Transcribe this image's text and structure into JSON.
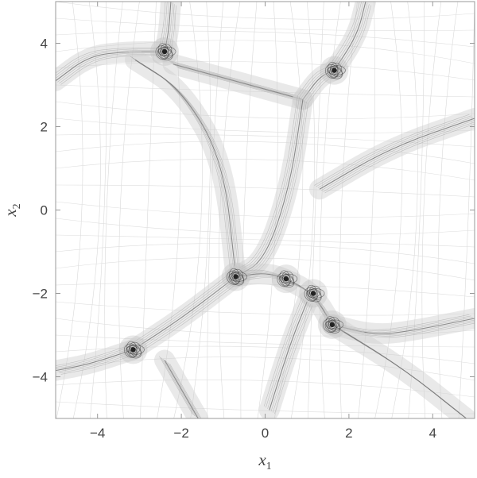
{
  "chart_data": {
    "type": "scatter",
    "title": "",
    "xlabel": "x",
    "xlabel_sub": "1",
    "ylabel": "x",
    "ylabel_sub": "2",
    "xlim": [
      -5,
      5
    ],
    "ylim": [
      -5,
      5
    ],
    "xticks": [
      {
        "value": -4,
        "label": "−4"
      },
      {
        "value": -2,
        "label": "−2"
      },
      {
        "value": 0,
        "label": "0"
      },
      {
        "value": 2,
        "label": "2"
      },
      {
        "value": 4,
        "label": "4"
      }
    ],
    "yticks": [
      {
        "value": 4,
        "label": "4"
      },
      {
        "value": 2,
        "label": "2"
      },
      {
        "value": 0,
        "label": "0"
      },
      {
        "value": -2,
        "label": "−2"
      },
      {
        "value": -4,
        "label": "−4"
      }
    ],
    "grid": false,
    "clusters": [
      {
        "x": -2.4,
        "y": 3.8
      },
      {
        "x": 1.65,
        "y": 3.35
      },
      {
        "x": -0.7,
        "y": -1.6
      },
      {
        "x": 0.5,
        "y": -1.65
      },
      {
        "x": 1.15,
        "y": -2.0
      },
      {
        "x": 1.6,
        "y": -2.75
      },
      {
        "x": -3.15,
        "y": -3.35
      }
    ],
    "bands": [
      {
        "name": "",
        "points": [
          [
            -5,
            3.1
          ],
          [
            -4.2,
            3.7
          ],
          [
            -3.3,
            3.8
          ],
          [
            -2.4,
            3.8
          ]
        ]
      },
      {
        "name": "",
        "points": [
          [
            -2.4,
            3.8
          ],
          [
            -2.3,
            4.3
          ],
          [
            -2.25,
            5.0
          ]
        ]
      },
      {
        "name": "",
        "points": [
          [
            -3.1,
            3.6
          ],
          [
            -2.0,
            2.9
          ],
          [
            -1.0,
            1.2
          ],
          [
            -0.7,
            -1.6
          ]
        ]
      },
      {
        "name": "",
        "points": [
          [
            -2.2,
            3.5
          ],
          [
            0.0,
            2.9
          ],
          [
            0.9,
            2.65
          ]
        ]
      },
      {
        "name": "",
        "points": [
          [
            0.9,
            2.65
          ],
          [
            1.3,
            3.2
          ],
          [
            1.65,
            3.35
          ]
        ]
      },
      {
        "name": "",
        "points": [
          [
            1.65,
            3.35
          ],
          [
            2.2,
            4.2
          ],
          [
            2.4,
            5.0
          ]
        ]
      },
      {
        "name": "",
        "points": [
          [
            0.9,
            2.65
          ],
          [
            0.6,
            0.6
          ],
          [
            0.0,
            -1.2
          ],
          [
            -0.7,
            -1.6
          ]
        ]
      },
      {
        "name": "",
        "points": [
          [
            1.3,
            0.5
          ],
          [
            3.0,
            1.5
          ],
          [
            5.0,
            2.2
          ]
        ]
      },
      {
        "name": "",
        "points": [
          [
            -0.7,
            -1.6
          ],
          [
            -2.0,
            -2.6
          ],
          [
            -3.15,
            -3.35
          ]
        ]
      },
      {
        "name": "",
        "points": [
          [
            -3.15,
            -3.35
          ],
          [
            -4.2,
            -3.7
          ],
          [
            -5.0,
            -3.85
          ]
        ]
      },
      {
        "name": "",
        "points": [
          [
            -0.7,
            -1.6
          ],
          [
            0.0,
            -1.5
          ],
          [
            0.5,
            -1.65
          ],
          [
            1.15,
            -2.0
          ],
          [
            1.6,
            -2.75
          ]
        ]
      },
      {
        "name": "",
        "points": [
          [
            1.6,
            -2.75
          ],
          [
            2.6,
            -3.0
          ],
          [
            3.5,
            -2.9
          ],
          [
            5.0,
            -2.6
          ]
        ]
      },
      {
        "name": "",
        "points": [
          [
            1.6,
            -2.75
          ],
          [
            3.3,
            -3.8
          ],
          [
            4.8,
            -5.0
          ]
        ]
      },
      {
        "name": "",
        "points": [
          [
            -2.4,
            -3.6
          ],
          [
            -2.0,
            -4.3
          ],
          [
            -1.6,
            -5.0
          ]
        ]
      },
      {
        "name": "",
        "points": [
          [
            0.1,
            -4.8
          ],
          [
            0.6,
            -3.2
          ],
          [
            1.0,
            -2.2
          ]
        ]
      }
    ]
  }
}
